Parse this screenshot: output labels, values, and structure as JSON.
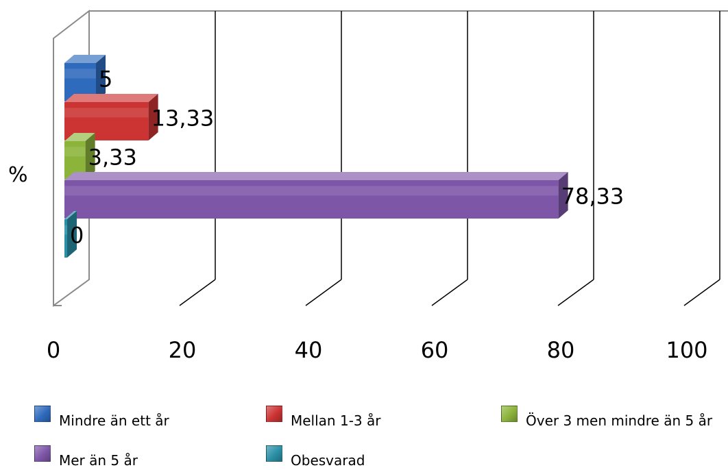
{
  "chart_data": {
    "type": "bar",
    "orientation": "horizontal",
    "three_d": true,
    "category_axis_label": "%",
    "categories": [
      "%"
    ],
    "xlim": [
      0,
      100
    ],
    "x_ticks": [
      "0",
      "20",
      "40",
      "60",
      "80",
      "100"
    ],
    "grid": true,
    "legend_position": "bottom",
    "series": [
      {
        "name": "Mindre än ett år",
        "value": 5,
        "label": "5",
        "color": "#2f6bbd"
      },
      {
        "name": "Mellan 1-3 år",
        "value": 13.33,
        "label": "13,33",
        "color": "#cc3333"
      },
      {
        "name": "Över 3 men mindre än 5 år",
        "value": 3.33,
        "label": "3,33",
        "color": "#8cb33a"
      },
      {
        "name": "Mer än 5 år",
        "value": 78.33,
        "label": "78,33",
        "color": "#7e56a8"
      },
      {
        "name": "Obesvarad",
        "value": 0,
        "label": "0",
        "color": "#2a8fa6"
      }
    ]
  }
}
